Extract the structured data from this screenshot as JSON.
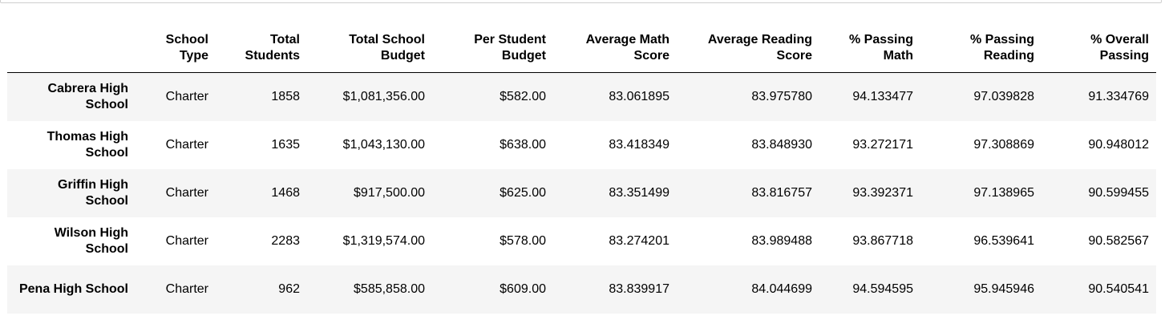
{
  "columns": [
    "",
    "School Type",
    "Total Students",
    "Total School Budget",
    "Per Student Budget",
    "Average Math Score",
    "Average Reading Score",
    "% Passing Math",
    "% Passing Reading",
    "% Overall Passing"
  ],
  "rows": [
    {
      "school": "Cabrera High School",
      "cells": [
        "Charter",
        "1858",
        "$1,081,356.00",
        "$582.00",
        "83.061895",
        "83.975780",
        "94.133477",
        "97.039828",
        "91.334769"
      ]
    },
    {
      "school": "Thomas High School",
      "cells": [
        "Charter",
        "1635",
        "$1,043,130.00",
        "$638.00",
        "83.418349",
        "83.848930",
        "93.272171",
        "97.308869",
        "90.948012"
      ]
    },
    {
      "school": "Griffin High School",
      "cells": [
        "Charter",
        "1468",
        "$917,500.00",
        "$625.00",
        "83.351499",
        "83.816757",
        "93.392371",
        "97.138965",
        "90.599455"
      ]
    },
    {
      "school": "Wilson High School",
      "cells": [
        "Charter",
        "2283",
        "$1,319,574.00",
        "$578.00",
        "83.274201",
        "83.989488",
        "93.867718",
        "96.539641",
        "90.582567"
      ]
    },
    {
      "school": "Pena High School",
      "cells": [
        "Charter",
        "962",
        "$585,858.00",
        "$609.00",
        "83.839917",
        "84.044699",
        "94.594595",
        "95.945946",
        "90.540541"
      ]
    }
  ],
  "colors": {
    "striped_row": "#f5f5f5",
    "header_rule": "#000000",
    "cell_border": "#cfcfcf"
  }
}
